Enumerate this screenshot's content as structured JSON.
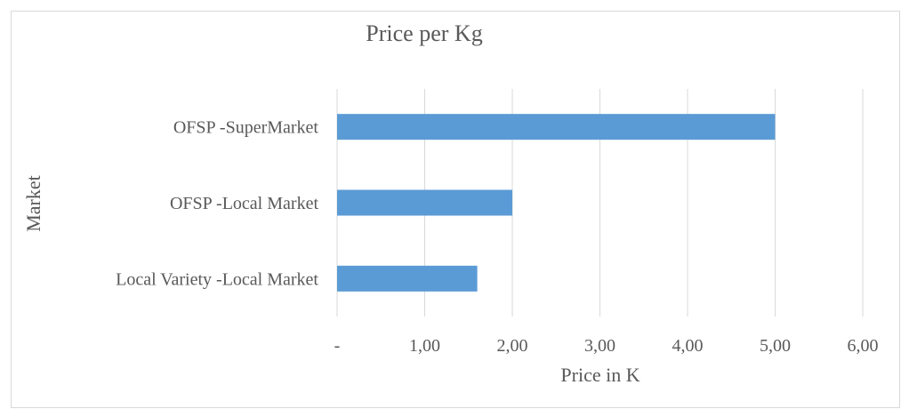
{
  "chart_data": {
    "type": "bar",
    "orientation": "horizontal",
    "title": "Price per Kg",
    "xlabel": "Price in K",
    "ylabel": "Market",
    "categories": [
      "OFSP -SuperMarket",
      "OFSP -Local Market",
      "Local Variety -Local Market"
    ],
    "values": [
      5.0,
      2.0,
      1.6
    ],
    "xlim": [
      0,
      6
    ],
    "x_ticks": [
      "-",
      "1,00",
      "2,00",
      "3,00",
      "4,00",
      "5,00",
      "6,00"
    ],
    "grid": true,
    "legend": "none",
    "colors": {
      "bar": "#5b9bd5",
      "grid": "#d9d9d9",
      "text": "#595959"
    }
  }
}
